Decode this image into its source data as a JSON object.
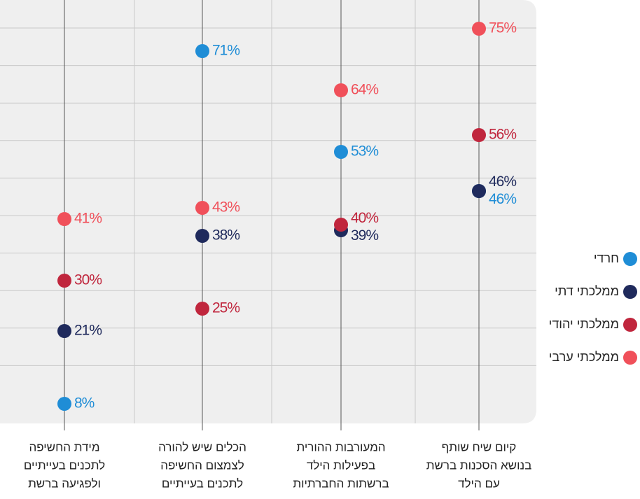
{
  "chart_data": {
    "type": "dot",
    "categories": [
      [
        "מידת החשיפה",
        "לתכנים בעייתיים",
        "ולפגיעה ברשת"
      ],
      [
        "הכלים שיש להורה",
        "לצמצום החשיפה",
        "לתכנים בעייתיים"
      ],
      [
        "המעורבות ההורית",
        "בפעילות הילד",
        "ברשתות החברתיות"
      ],
      [
        "קיום שיח שותף",
        "בנושא הסכנות ברשת",
        "עם הילד"
      ]
    ],
    "series": [
      {
        "name": "חרדי",
        "color": "#1f8dd6",
        "values": [
          8,
          71,
          53,
          46
        ],
        "value_labels": [
          "8%",
          "71%",
          "53%",
          "46%"
        ]
      },
      {
        "name": "ממלכתי דתי",
        "color": "#1f2a5c",
        "values": [
          21,
          38,
          39,
          46
        ],
        "value_labels": [
          "21%",
          "38%",
          "39%",
          "46%"
        ]
      },
      {
        "name": "ממלכתי יהודי",
        "color": "#c0263d",
        "values": [
          30,
          25,
          40,
          56
        ],
        "value_labels": [
          "30%",
          "25%",
          "40%",
          "56%"
        ]
      },
      {
        "name": "ממלכתי ערבי",
        "color": "#f0505a",
        "values": [
          41,
          43,
          64,
          75
        ],
        "value_labels": [
          "41%",
          "43%",
          "64%",
          "75%"
        ]
      }
    ],
    "ylim": [
      0,
      80
    ],
    "grid": true,
    "legend": "right"
  }
}
